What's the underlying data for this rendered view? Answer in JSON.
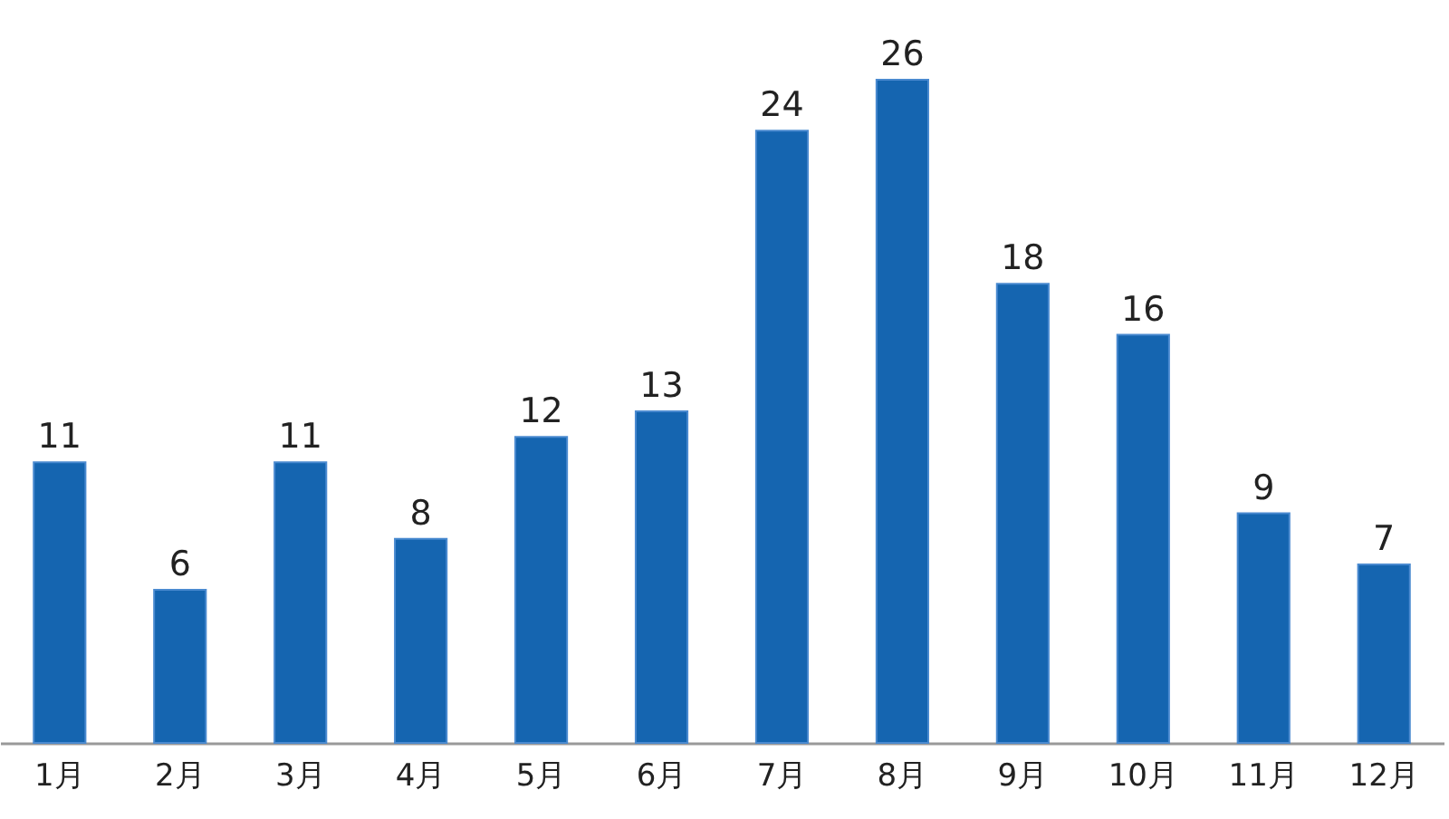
{
  "chart_data": {
    "type": "bar",
    "categories": [
      "1月",
      "2月",
      "3月",
      "4月",
      "5月",
      "6月",
      "7月",
      "8月",
      "9月",
      "10月",
      "11月",
      "12月"
    ],
    "values": [
      11,
      6,
      11,
      8,
      12,
      13,
      24,
      26,
      18,
      16,
      9,
      7
    ],
    "color": "#1565b0",
    "data_labels": true
  }
}
